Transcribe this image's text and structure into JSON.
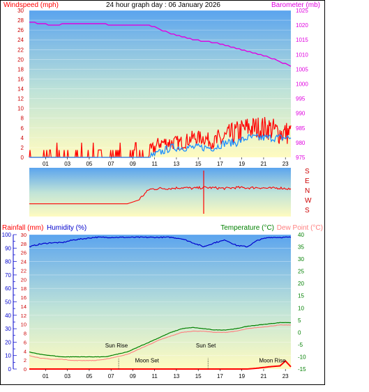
{
  "title": "24 hour graph day : 06 January 2026",
  "colors": {
    "wind": "#ff0000",
    "gust_base": "#1e90ff",
    "barometer": "#e000e0",
    "direction": "#ff0000",
    "humidity": "#0000cc",
    "temperature": "#008000",
    "dewpoint": "#ff8080",
    "rain": "#ff0000"
  },
  "x_ticks": [
    "01",
    "03",
    "05",
    "07",
    "09",
    "11",
    "13",
    "15",
    "17",
    "19",
    "21",
    "23"
  ],
  "panel1": {
    "left_label": "Windspeed (mph)",
    "right_label": "Barometer (mb)",
    "left_ticks": [
      "30",
      "28",
      "26",
      "24",
      "22",
      "20",
      "18",
      "16",
      "14",
      "12",
      "10",
      "8",
      "6",
      "4",
      "2",
      "0"
    ],
    "right_ticks": [
      "1025",
      "1020",
      "1015",
      "1010",
      "1005",
      "1000",
      "995",
      "990",
      "985",
      "980",
      "975"
    ]
  },
  "panel2": {
    "dir_labels": [
      "S",
      "E",
      "N",
      "W",
      "S"
    ]
  },
  "panel3": {
    "rain_label": "Rainfall (mm)",
    "hum_label": "Humidity (%)",
    "temp_label": "Temperature (°C)",
    "dew_label": "Dew Point (°C)",
    "hum_ticks": [
      "100",
      "90",
      "80",
      "70",
      "60",
      "50",
      "40",
      "30",
      "20",
      "10",
      "0"
    ],
    "rain_ticks": [
      "30",
      "28",
      "26",
      "24",
      "22",
      "20",
      "18",
      "16",
      "14",
      "12",
      "10",
      "8",
      "6",
      "4",
      "2",
      "0"
    ],
    "temp_ticks": [
      "40",
      "35",
      "30",
      "25",
      "20",
      "15",
      "10",
      "5",
      "0",
      "-5",
      "-10",
      "-15"
    ],
    "annotations": {
      "sunrise": "Sun Rise",
      "sunset": "Sun Set",
      "moonset": "Moon Set",
      "moonrise": "Moon Rise"
    }
  },
  "chart_data": [
    {
      "type": "line",
      "title": "24 hour graph day : 06 January 2026",
      "xlabel": "",
      "ylabel": "Windspeed (mph)",
      "ylim": [
        0,
        30
      ],
      "y2label": "Barometer (mb)",
      "y2lim": [
        975,
        1025
      ],
      "series": [
        {
          "name": "",
          "x": [
            0,
            1,
            2,
            3,
            4,
            5,
            6,
            7,
            8,
            9,
            10,
            11,
            12,
            13,
            14,
            15,
            16,
            17,
            18,
            19,
            20,
            21,
            22,
            23,
            24
          ],
          "values": [
            1,
            1,
            0,
            1,
            0,
            0,
            0,
            0,
            1,
            0,
            0,
            1,
            3,
            3,
            3,
            4,
            4,
            3,
            4,
            5,
            6,
            6,
            6,
            5,
            5
          ]
        },
        {
          "name": "",
          "x": [
            0,
            1,
            2,
            3,
            4,
            5,
            6,
            7,
            8,
            9,
            10,
            11,
            12,
            13,
            14,
            15,
            16,
            17,
            18,
            19,
            20,
            21,
            22,
            23,
            24
          ],
          "values": [
            0,
            0,
            0,
            0,
            0,
            0,
            0,
            0,
            0,
            0,
            0,
            0,
            1,
            2,
            2,
            2,
            2,
            2,
            3,
            3,
            4,
            4,
            4,
            4,
            4
          ]
        },
        {
          "name": "",
          "axis": "y2",
          "x": [
            0,
            2,
            4,
            6,
            8,
            10,
            11,
            12,
            13,
            14,
            15,
            16,
            17,
            18,
            19,
            20,
            21,
            22,
            23,
            24
          ],
          "values": [
            1021,
            1020,
            1020.5,
            1020.5,
            1020,
            1020,
            1020,
            1018.5,
            1017,
            1016,
            1015,
            1014.5,
            1014,
            1013,
            1012,
            1011,
            1010,
            1009,
            1007.5,
            1006
          ]
        }
      ]
    },
    {
      "type": "line",
      "title": "",
      "ylabel": "",
      "categories": [
        "S",
        "E",
        "N",
        "W",
        "S"
      ],
      "series": [
        {
          "name": "",
          "x": [
            0,
            1,
            3,
            5,
            7,
            8,
            9,
            10,
            11,
            12,
            13,
            14,
            15,
            16,
            17,
            18,
            19,
            20,
            21,
            22,
            23,
            24
          ],
          "values": [
            180,
            180,
            180,
            180,
            180,
            180,
            180,
            200,
            260,
            265,
            265,
            270,
            265,
            270,
            268,
            265,
            270,
            268,
            270,
            265,
            268,
            262
          ]
        }
      ]
    },
    {
      "type": "line",
      "title": "",
      "ylabel": "Humidity (%)",
      "ylim": [
        0,
        100
      ],
      "y2label": "Temperature (°C)",
      "y2lim": [
        -15,
        40
      ],
      "series": [
        {
          "name": "Humidity (%)",
          "x": [
            0,
            1,
            2,
            3,
            4,
            5,
            6,
            7,
            8,
            9,
            10,
            11,
            12,
            13,
            14,
            15,
            16,
            17,
            18,
            19,
            20,
            21,
            22,
            23,
            24
          ],
          "values": [
            91,
            93,
            94,
            94,
            96,
            97,
            98,
            98,
            98,
            98,
            98,
            98,
            98,
            98,
            97,
            94,
            91,
            94,
            96,
            92,
            91,
            96,
            98,
            98,
            98
          ]
        },
        {
          "name": "Temperature (°C)",
          "axis": "y2",
          "x": [
            0,
            1,
            2,
            3,
            4,
            5,
            6,
            7,
            8,
            9,
            10,
            11,
            12,
            13,
            14,
            15,
            16,
            17,
            18,
            19,
            20,
            21,
            22,
            23,
            24
          ],
          "values": [
            -8,
            -9,
            -9.5,
            -10,
            -10,
            -10,
            -10,
            -10,
            -9,
            -8,
            -6,
            -4,
            -2,
            0,
            1.5,
            2,
            1.5,
            1,
            1,
            1.5,
            2.5,
            3,
            3.5,
            4,
            4
          ]
        },
        {
          "name": "Dew Point (°C)",
          "axis": "y2",
          "x": [
            0,
            1,
            2,
            3,
            4,
            5,
            6,
            7,
            8,
            9,
            10,
            11,
            12,
            13,
            14,
            15,
            16,
            17,
            18,
            19,
            20,
            21,
            22,
            23,
            24
          ],
          "values": [
            -9.5,
            -10.5,
            -11,
            -11,
            -11.5,
            -11.5,
            -11.5,
            -11,
            -10,
            -9,
            -7,
            -5,
            -3,
            -1.5,
            0,
            0.5,
            0.5,
            0,
            0,
            0.5,
            1.5,
            2,
            2.5,
            3,
            3
          ]
        },
        {
          "name": "Rainfall (mm)",
          "x": [
            0,
            2,
            4,
            6,
            8,
            10,
            12,
            14,
            16,
            18,
            19,
            20,
            21,
            22,
            23,
            23.5,
            24
          ],
          "values": [
            0,
            0,
            0,
            0,
            0,
            0,
            0,
            0,
            0,
            0,
            0,
            0,
            0.2,
            0.5,
            0.7,
            1.8,
            0.5
          ]
        }
      ]
    }
  ]
}
